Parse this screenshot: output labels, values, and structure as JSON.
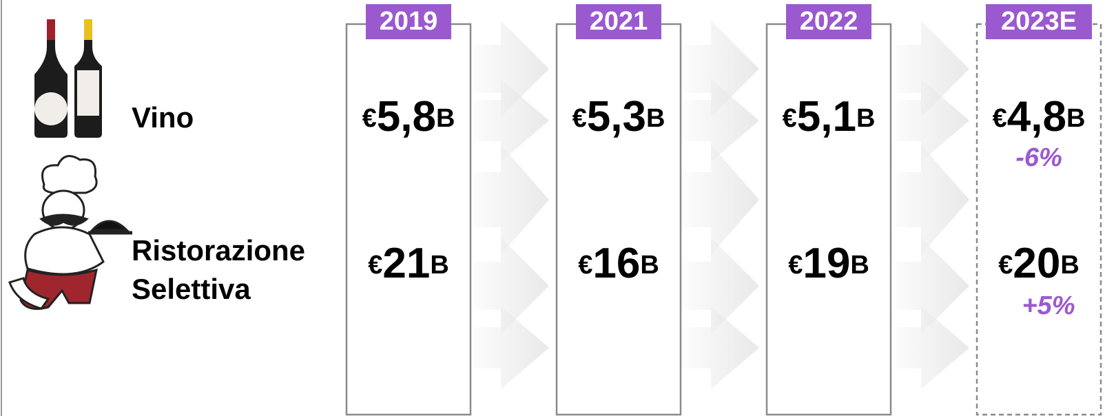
{
  "currency": "€",
  "unit": "B",
  "columns": [
    "2019",
    "2021",
    "2022",
    "2023E"
  ],
  "rows": [
    {
      "label": [
        "Vino"
      ],
      "values": [
        "5,8",
        "5,3",
        "5,1",
        "4,8"
      ],
      "change": "-6%"
    },
    {
      "label": [
        "Ristorazione",
        "Selettiva"
      ],
      "values": [
        "21",
        "16",
        "19",
        "20"
      ],
      "change": "+5%"
    }
  ]
}
